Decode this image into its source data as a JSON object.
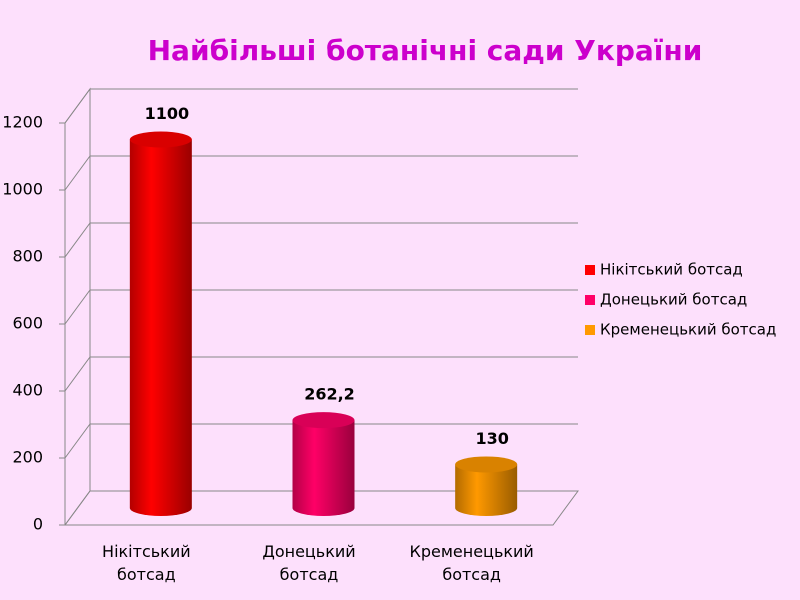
{
  "chart_data": {
    "type": "bar",
    "title": "Найбільші ботанічні сади України",
    "categories": [
      "Нікітський ботсад",
      "Донецький ботсад",
      "Кременецький ботсад"
    ],
    "values": [
      1100,
      262.2,
      130
    ],
    "value_labels": [
      "1100",
      "262,2",
      "130"
    ],
    "colors": [
      "#ff0000",
      "#ff0066",
      "#ff9900"
    ],
    "ylim": [
      0,
      1200
    ],
    "yticks": [
      0,
      200,
      400,
      600,
      800,
      1000,
      1200
    ],
    "grid": true,
    "legend": "right"
  }
}
